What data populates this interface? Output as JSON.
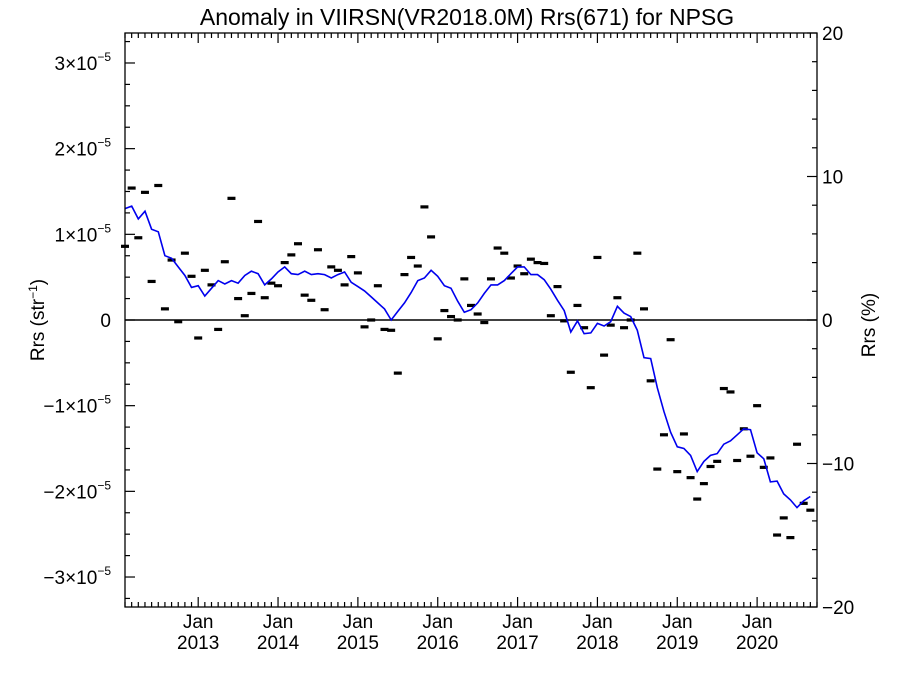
{
  "chart_data": {
    "type": "line",
    "title": "Anomaly in VIIRSN(VR2018.0M) Rrs(671) for NPSG",
    "ylabel": "Rrs (str",
    "ylabel_superscript": "−1",
    "ylabel_suffix": ")",
    "y2label": "Rrs (%)",
    "xlim": [
      "2012-02",
      "2020-10"
    ],
    "ylim": [
      -3.35e-05,
      3.35e-05
    ],
    "y2lim": [
      -20,
      20
    ],
    "grid": false,
    "zero_line": true,
    "x_tick_labels": [
      {
        "month": "Jan",
        "year": "2013",
        "x": "2013-01"
      },
      {
        "month": "Jan",
        "year": "2014",
        "x": "2014-01"
      },
      {
        "month": "Jan",
        "year": "2015",
        "x": "2015-01"
      },
      {
        "month": "Jan",
        "year": "2016",
        "x": "2016-01"
      },
      {
        "month": "Jan",
        "year": "2017",
        "x": "2017-01"
      },
      {
        "month": "Jan",
        "year": "2018",
        "x": "2018-01"
      },
      {
        "month": "Jan",
        "year": "2019",
        "x": "2019-01"
      },
      {
        "month": "Jan",
        "year": "2020",
        "x": "2020-01"
      }
    ],
    "y_tick_labels": [
      {
        "mantissa": "3×10",
        "exponent": "−5",
        "value": 3e-05
      },
      {
        "mantissa": "2×10",
        "exponent": "−5",
        "value": 2e-05
      },
      {
        "mantissa": "1×10",
        "exponent": "−5",
        "value": 1e-05
      },
      {
        "mantissa": "0",
        "exponent": "",
        "value": 0
      },
      {
        "mantissa": "−1×10",
        "exponent": "−5",
        "value": -1e-05
      },
      {
        "mantissa": "−2×10",
        "exponent": "−5",
        "value": -2e-05
      },
      {
        "mantissa": "−3×10",
        "exponent": "−5",
        "value": -3e-05
      }
    ],
    "y2_tick_labels": [
      {
        "text": "20",
        "value": 20
      },
      {
        "text": "10",
        "value": 10
      },
      {
        "text": "0",
        "value": 0
      },
      {
        "text": "−10",
        "value": -10
      },
      {
        "text": "−20",
        "value": -20
      }
    ],
    "series": [
      {
        "style": "black dashes",
        "points": [
          [
            "2012-02",
            8.6e-06
          ],
          [
            "2012-03",
            1.54e-05
          ],
          [
            "2012-04",
            9.6e-06
          ],
          [
            "2012-05",
            1.49e-05
          ],
          [
            "2012-06",
            4.5e-06
          ],
          [
            "2012-07",
            1.57e-05
          ],
          [
            "2012-08",
            1.3e-06
          ],
          [
            "2012-09",
            7e-06
          ],
          [
            "2012-10",
            -2e-07
          ],
          [
            "2012-11",
            7.8e-06
          ],
          [
            "2012-12",
            5.1e-06
          ],
          [
            "2013-01",
            -2.1e-06
          ],
          [
            "2013-02",
            5.8e-06
          ],
          [
            "2013-03",
            4.1e-06
          ],
          [
            "2013-04",
            -1.1e-06
          ],
          [
            "2013-05",
            6.8e-06
          ],
          [
            "2013-06",
            1.42e-05
          ],
          [
            "2013-07",
            2.5e-06
          ],
          [
            "2013-08",
            5e-07
          ],
          [
            "2013-09",
            3.1e-06
          ],
          [
            "2013-10",
            1.15e-05
          ],
          [
            "2013-11",
            2.6e-06
          ],
          [
            "2013-12",
            4.3e-06
          ],
          [
            "2014-01",
            4e-06
          ],
          [
            "2014-02",
            6.7e-06
          ],
          [
            "2014-03",
            7.6e-06
          ],
          [
            "2014-04",
            8.9e-06
          ],
          [
            "2014-05",
            2.9e-06
          ],
          [
            "2014-06",
            2.3e-06
          ],
          [
            "2014-07",
            8.2e-06
          ],
          [
            "2014-08",
            1.2e-06
          ],
          [
            "2014-09",
            6.2e-06
          ],
          [
            "2014-10",
            5.8e-06
          ],
          [
            "2014-11",
            4.1e-06
          ],
          [
            "2014-12",
            7.4e-06
          ],
          [
            "2015-01",
            5.5e-06
          ],
          [
            "2015-02",
            -8e-07
          ],
          [
            "2015-03",
            0.0
          ],
          [
            "2015-04",
            4e-06
          ],
          [
            "2015-05",
            -1.1e-06
          ],
          [
            "2015-06",
            -1.2e-06
          ],
          [
            "2015-07",
            -6.2e-06
          ],
          [
            "2015-08",
            5.3e-06
          ],
          [
            "2015-09",
            7.3e-06
          ],
          [
            "2015-10",
            6.3e-06
          ],
          [
            "2015-11",
            1.32e-05
          ],
          [
            "2015-12",
            9.7e-06
          ],
          [
            "2016-01",
            -2.2e-06
          ],
          [
            "2016-02",
            1.1e-06
          ],
          [
            "2016-03",
            4e-07
          ],
          [
            "2016-04",
            0.0
          ],
          [
            "2016-05",
            4.8e-06
          ],
          [
            "2016-06",
            1.7e-06
          ],
          [
            "2016-07",
            7e-07
          ],
          [
            "2016-08",
            -3e-07
          ],
          [
            "2016-09",
            4.8e-06
          ],
          [
            "2016-10",
            8.4e-06
          ],
          [
            "2016-11",
            7.8e-06
          ],
          [
            "2016-12",
            4.9e-06
          ],
          [
            "2017-01",
            6.3e-06
          ],
          [
            "2017-02",
            5.4e-06
          ],
          [
            "2017-03",
            7.1e-06
          ],
          [
            "2017-04",
            6.7e-06
          ],
          [
            "2017-05",
            6.6e-06
          ],
          [
            "2017-06",
            5e-07
          ],
          [
            "2017-07",
            3.9e-06
          ],
          [
            "2017-08",
            -1e-07
          ],
          [
            "2017-09",
            -6.1e-06
          ],
          [
            "2017-10",
            1.7e-06
          ],
          [
            "2017-11",
            -9e-07
          ],
          [
            "2017-12",
            -7.9e-06
          ],
          [
            "2018-01",
            7.3e-06
          ],
          [
            "2018-02",
            -4.1e-06
          ],
          [
            "2018-03",
            -6e-07
          ],
          [
            "2018-04",
            2.6e-06
          ],
          [
            "2018-05",
            -9e-07
          ],
          [
            "2018-06",
            0.0
          ],
          [
            "2018-07",
            7.8e-06
          ],
          [
            "2018-08",
            1.3e-06
          ],
          [
            "2018-09",
            -7.1e-06
          ],
          [
            "2018-10",
            -1.74e-05
          ],
          [
            "2018-11",
            -1.34e-05
          ],
          [
            "2018-12",
            -2.3e-06
          ],
          [
            "2019-01",
            -1.77e-05
          ],
          [
            "2019-02",
            -1.33e-05
          ],
          [
            "2019-03",
            -1.84e-05
          ],
          [
            "2019-04",
            -2.09e-05
          ],
          [
            "2019-05",
            -1.91e-05
          ],
          [
            "2019-06",
            -1.71e-05
          ],
          [
            "2019-07",
            -1.65e-05
          ],
          [
            "2019-08",
            -8e-06
          ],
          [
            "2019-09",
            -8.4e-06
          ],
          [
            "2019-10",
            -1.64e-05
          ],
          [
            "2019-11",
            -1.27e-05
          ],
          [
            "2019-12",
            -1.59e-05
          ],
          [
            "2020-01",
            -1e-05
          ],
          [
            "2020-02",
            -1.72e-05
          ],
          [
            "2020-03",
            -1.61e-05
          ],
          [
            "2020-04",
            -2.51e-05
          ],
          [
            "2020-05",
            -2.31e-05
          ],
          [
            "2020-06",
            -2.54e-05
          ],
          [
            "2020-07",
            -1.45e-05
          ],
          [
            "2020-08",
            -2.14e-05
          ],
          [
            "2020-09",
            -2.22e-05
          ]
        ]
      },
      {
        "style": "blue line",
        "color": "#0000ee",
        "points": [
          [
            "2012-02",
            1.3e-05
          ],
          [
            "2012-03",
            1.33e-05
          ],
          [
            "2012-04",
            1.18e-05
          ],
          [
            "2012-05",
            1.27e-05
          ],
          [
            "2012-06",
            1.06e-05
          ],
          [
            "2012-07",
            1.03e-05
          ],
          [
            "2012-08",
            7.5e-06
          ],
          [
            "2012-09",
            7.2e-06
          ],
          [
            "2012-10",
            6.2e-06
          ],
          [
            "2012-11",
            5.2e-06
          ],
          [
            "2012-12",
            3.8e-06
          ],
          [
            "2013-01",
            4e-06
          ],
          [
            "2013-02",
            2.8e-06
          ],
          [
            "2013-03",
            3.7e-06
          ],
          [
            "2013-04",
            4.6e-06
          ],
          [
            "2013-05",
            4.2e-06
          ],
          [
            "2013-06",
            4.6e-06
          ],
          [
            "2013-07",
            4.3e-06
          ],
          [
            "2013-08",
            5.2e-06
          ],
          [
            "2013-09",
            5.7e-06
          ],
          [
            "2013-10",
            5.4e-06
          ],
          [
            "2013-11",
            4.1e-06
          ],
          [
            "2013-12",
            4.8e-06
          ],
          [
            "2014-01",
            5.6e-06
          ],
          [
            "2014-02",
            6.2e-06
          ],
          [
            "2014-03",
            5.4e-06
          ],
          [
            "2014-04",
            5.3e-06
          ],
          [
            "2014-05",
            5.7e-06
          ],
          [
            "2014-06",
            5.3e-06
          ],
          [
            "2014-07",
            5.4e-06
          ],
          [
            "2014-08",
            5.3e-06
          ],
          [
            "2014-09",
            4.9e-06
          ],
          [
            "2014-10",
            5.3e-06
          ],
          [
            "2014-11",
            5.6e-06
          ],
          [
            "2014-12",
            4.4e-06
          ],
          [
            "2015-01",
            3.9e-06
          ],
          [
            "2015-02",
            3.4e-06
          ],
          [
            "2015-03",
            2.7e-06
          ],
          [
            "2015-04",
            2e-06
          ],
          [
            "2015-05",
            1.3e-06
          ],
          [
            "2015-06",
            0.0
          ],
          [
            "2015-07",
            1e-06
          ],
          [
            "2015-08",
            2e-06
          ],
          [
            "2015-09",
            3.2e-06
          ],
          [
            "2015-10",
            4.6e-06
          ],
          [
            "2015-11",
            4.9e-06
          ],
          [
            "2015-12",
            5.8e-06
          ],
          [
            "2016-01",
            5.1e-06
          ],
          [
            "2016-02",
            4e-06
          ],
          [
            "2016-03",
            3.7e-06
          ],
          [
            "2016-04",
            2.2e-06
          ],
          [
            "2016-05",
            9e-07
          ],
          [
            "2016-06",
            1.2e-06
          ],
          [
            "2016-07",
            2e-06
          ],
          [
            "2016-08",
            3.1e-06
          ],
          [
            "2016-09",
            4.1e-06
          ],
          [
            "2016-10",
            4.1e-06
          ],
          [
            "2016-11",
            4.6e-06
          ],
          [
            "2016-12",
            5.4e-06
          ],
          [
            "2017-01",
            6.2e-06
          ],
          [
            "2017-02",
            6.2e-06
          ],
          [
            "2017-03",
            5.3e-06
          ],
          [
            "2017-04",
            5.3e-06
          ],
          [
            "2017-05",
            4.7e-06
          ],
          [
            "2017-06",
            3.6e-06
          ],
          [
            "2017-07",
            2.3e-06
          ],
          [
            "2017-08",
            1.1e-06
          ],
          [
            "2017-09",
            -1.4e-06
          ],
          [
            "2017-10",
            -1e-07
          ],
          [
            "2017-11",
            -1.6e-06
          ],
          [
            "2017-12",
            -1.5e-06
          ],
          [
            "2018-01",
            -4e-07
          ],
          [
            "2018-02",
            -7e-07
          ],
          [
            "2018-03",
            -2e-07
          ],
          [
            "2018-04",
            1.6e-06
          ],
          [
            "2018-05",
            8e-07
          ],
          [
            "2018-06",
            4e-07
          ],
          [
            "2018-07",
            -1.2e-06
          ],
          [
            "2018-08",
            -4.4e-06
          ],
          [
            "2018-09",
            -4.5e-06
          ],
          [
            "2018-10",
            -7.9e-06
          ],
          [
            "2018-11",
            -1.07e-05
          ],
          [
            "2018-12",
            -1.31e-05
          ],
          [
            "2019-01",
            -1.48e-05
          ],
          [
            "2019-02",
            -1.5e-05
          ],
          [
            "2019-03",
            -1.58e-05
          ],
          [
            "2019-04",
            -1.77e-05
          ],
          [
            "2019-05",
            -1.65e-05
          ],
          [
            "2019-06",
            -1.58e-05
          ],
          [
            "2019-07",
            -1.56e-05
          ],
          [
            "2019-08",
            -1.45e-05
          ],
          [
            "2019-09",
            -1.41e-05
          ],
          [
            "2019-10",
            -1.34e-05
          ],
          [
            "2019-11",
            -1.27e-05
          ],
          [
            "2019-12",
            -1.28e-05
          ],
          [
            "2020-01",
            -1.55e-05
          ],
          [
            "2020-02",
            -1.62e-05
          ],
          [
            "2020-03",
            -1.89e-05
          ],
          [
            "2020-04",
            -1.88e-05
          ],
          [
            "2020-05",
            -2.03e-05
          ],
          [
            "2020-06",
            -2.1e-05
          ],
          [
            "2020-07",
            -2.19e-05
          ],
          [
            "2020-08",
            -2.11e-05
          ],
          [
            "2020-09",
            -2.06e-05
          ]
        ]
      }
    ]
  }
}
